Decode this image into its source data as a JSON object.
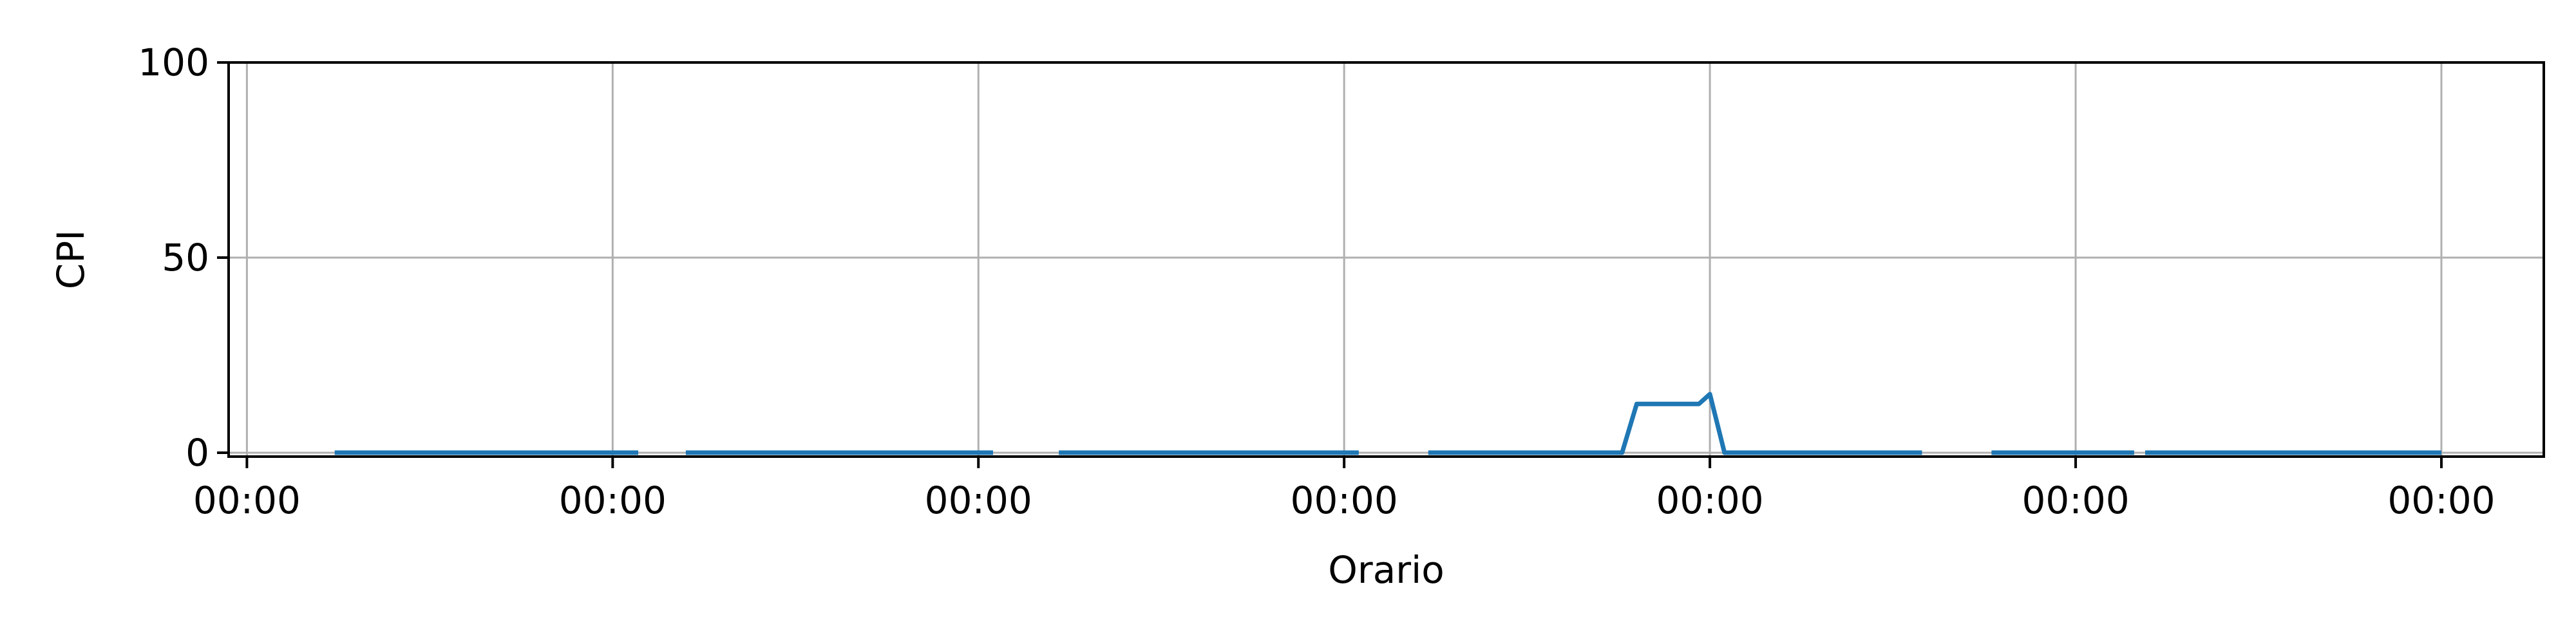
{
  "chart_data": {
    "type": "line",
    "xlabel": "Orario",
    "ylabel": "CPI",
    "x_tick_labels": [
      "00:00",
      "00:00",
      "00:00",
      "00:00",
      "00:00",
      "00:00",
      "00:00"
    ],
    "y_ticks": [
      0,
      50,
      100
    ],
    "xlim": [
      -0.05,
      6.28
    ],
    "ylim": [
      -1,
      100
    ],
    "grid": true,
    "legend": "none",
    "series_color": "#1f77b4",
    "grid_color": "#b0b0b0",
    "series": [
      {
        "segments": [
          [
            [
              0.24,
              0
            ],
            [
              1.07,
              0
            ]
          ],
          [
            [
              1.2,
              0
            ],
            [
              2.04,
              0
            ]
          ],
          [
            [
              2.22,
              0
            ],
            [
              3.04,
              0
            ]
          ],
          [
            [
              3.23,
              0
            ],
            [
              3.76,
              0
            ],
            [
              3.8,
              12.5
            ],
            [
              3.97,
              12.5
            ],
            [
              4.0,
              15
            ],
            [
              4.04,
              0
            ],
            [
              4.58,
              0
            ]
          ],
          [
            [
              4.77,
              0
            ],
            [
              5.16,
              0
            ]
          ],
          [
            [
              5.19,
              0
            ],
            [
              6.0,
              0
            ]
          ]
        ]
      }
    ]
  }
}
